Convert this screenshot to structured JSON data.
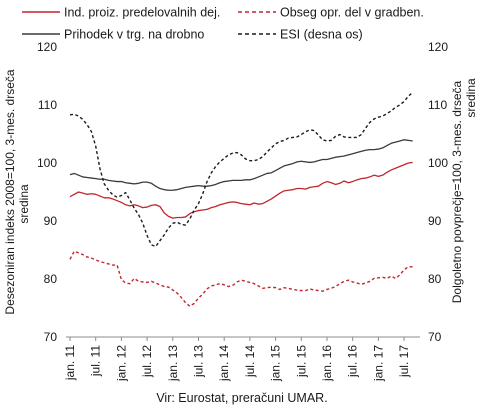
{
  "chart_data": {
    "type": "line",
    "source": "Vir: Eurostat, preračuni UMAR.",
    "left_axis": {
      "label_lines": [
        "Desezoniran indeks 2008=100, 3-mes. drseča",
        "sredina"
      ],
      "ylim": [
        70,
        120
      ],
      "ticks": [
        70,
        80,
        90,
        100,
        110,
        120
      ]
    },
    "right_axis": {
      "label_lines": [
        "Dolgoletno povprečje=100, 3-mes. drseča",
        "sredina"
      ],
      "ylim": [
        70,
        120
      ],
      "ticks": [
        70,
        80,
        90,
        100,
        110,
        120
      ]
    },
    "x_ticks": [
      "jan. 11",
      "jul. 11",
      "jan. 12",
      "jul. 12",
      "jan. 13",
      "jul. 13",
      "jan. 14",
      "jul. 14",
      "jan. 15",
      "jul. 15",
      "jan. 16",
      "jul. 16",
      "jan. 17",
      "jul. 17"
    ],
    "x_start": "2011-01",
    "x_end": "2017-09",
    "grid": false,
    "legend_position": "top",
    "series": [
      {
        "name": "Ind. proiz. predelovalnih dej.",
        "color": "#c0272d",
        "dash": "solid",
        "axis": "left",
        "values": [
          94.2,
          94.6,
          95.0,
          94.8,
          94.6,
          94.7,
          94.6,
          94.3,
          94.0,
          94.0,
          93.8,
          93.5,
          93.2,
          92.8,
          92.6,
          92.8,
          92.6,
          92.3,
          92.4,
          92.7,
          92.8,
          92.5,
          91.4,
          90.8,
          90.5,
          90.6,
          90.6,
          90.7,
          91.3,
          91.6,
          91.8,
          91.9,
          92.0,
          92.3,
          92.5,
          92.8,
          93.0,
          93.2,
          93.3,
          93.2,
          93.0,
          92.9,
          92.8,
          93.1,
          92.9,
          93.0,
          93.4,
          93.8,
          94.3,
          94.8,
          95.2,
          95.3,
          95.4,
          95.6,
          95.6,
          95.5,
          95.8,
          95.9,
          96.0,
          96.5,
          96.8,
          96.6,
          96.3,
          96.5,
          96.9,
          96.6,
          96.8,
          97.1,
          97.3,
          97.4,
          97.6,
          97.9,
          97.7,
          97.9,
          98.4,
          98.8,
          99.1,
          99.4,
          99.7,
          100.0,
          100.1
        ]
      },
      {
        "name": "Obseg opr. del v gradben.",
        "color": "#c0272d",
        "dash": "dashed",
        "axis": "left",
        "values": [
          83.4,
          84.8,
          84.5,
          84.2,
          83.8,
          83.6,
          83.3,
          83.0,
          82.8,
          82.6,
          82.4,
          82.4,
          79.9,
          79.3,
          79.2,
          80.1,
          79.6,
          79.5,
          79.4,
          79.6,
          79.3,
          79.0,
          78.7,
          78.6,
          78.1,
          77.6,
          76.8,
          75.9,
          75.3,
          75.8,
          76.7,
          77.4,
          78.3,
          78.8,
          79.0,
          79.2,
          79.0,
          78.7,
          78.9,
          79.5,
          79.8,
          79.6,
          79.4,
          79.2,
          78.8,
          78.4,
          78.5,
          78.6,
          78.5,
          78.2,
          78.5,
          78.4,
          78.2,
          78.1,
          78.0,
          78.0,
          78.3,
          78.1,
          78.0,
          77.9,
          78.2,
          78.4,
          78.7,
          79.2,
          79.6,
          79.8,
          79.5,
          79.3,
          79.1,
          79.3,
          79.6,
          80.1,
          80.2,
          80.3,
          80.1,
          80.5,
          80.1,
          80.7,
          81.6,
          82.1,
          82.1
        ]
      },
      {
        "name": "Prihodek v trg. na drobno",
        "color": "#3a3a3a",
        "dash": "solid",
        "axis": "left",
        "values": [
          98.0,
          98.2,
          97.9,
          97.6,
          97.5,
          97.4,
          97.3,
          97.2,
          97.2,
          97.0,
          96.9,
          96.8,
          96.8,
          96.6,
          96.5,
          96.4,
          96.5,
          96.7,
          96.7,
          96.5,
          96.0,
          95.6,
          95.4,
          95.3,
          95.3,
          95.4,
          95.6,
          95.8,
          95.9,
          96.0,
          96.1,
          96.0,
          96.0,
          96.1,
          96.3,
          96.6,
          96.8,
          96.9,
          97.0,
          97.0,
          97.0,
          97.1,
          97.1,
          97.3,
          97.6,
          97.9,
          98.2,
          98.3,
          98.7,
          99.1,
          99.5,
          99.7,
          99.9,
          100.2,
          100.3,
          100.2,
          100.1,
          100.2,
          100.4,
          100.6,
          100.6,
          100.8,
          101.0,
          101.1,
          101.2,
          101.4,
          101.6,
          101.8,
          102.0,
          102.2,
          102.3,
          102.3,
          102.4,
          102.6,
          103.0,
          103.4,
          103.6,
          103.8,
          104.0,
          103.9,
          103.8
        ]
      },
      {
        "name": "ESI (desna os)",
        "color": "#1a1a1a",
        "dash": "dashed",
        "axis": "right",
        "values": [
          108.3,
          108.4,
          108.1,
          107.5,
          106.6,
          105.4,
          102.9,
          99.0,
          96.4,
          95.3,
          94.5,
          94.1,
          94.4,
          94.9,
          93.6,
          92.2,
          91.1,
          89.6,
          87.5,
          85.9,
          85.6,
          86.6,
          87.6,
          88.8,
          89.6,
          89.8,
          89.4,
          89.3,
          90.4,
          91.9,
          93.0,
          94.7,
          96.8,
          98.3,
          99.4,
          100.2,
          100.8,
          101.4,
          101.7,
          101.8,
          101.4,
          100.7,
          100.4,
          100.4,
          100.6,
          101.1,
          101.9,
          102.6,
          103.3,
          103.7,
          103.9,
          104.3,
          104.4,
          104.5,
          104.9,
          105.4,
          105.7,
          105.6,
          104.8,
          104.0,
          103.8,
          103.9,
          104.6,
          104.9,
          104.5,
          104.4,
          104.4,
          104.4,
          104.9,
          106.0,
          107.0,
          107.6,
          107.9,
          108.1,
          108.5,
          109.0,
          109.6,
          110.0,
          110.6,
          111.5,
          112.2
        ]
      }
    ]
  }
}
